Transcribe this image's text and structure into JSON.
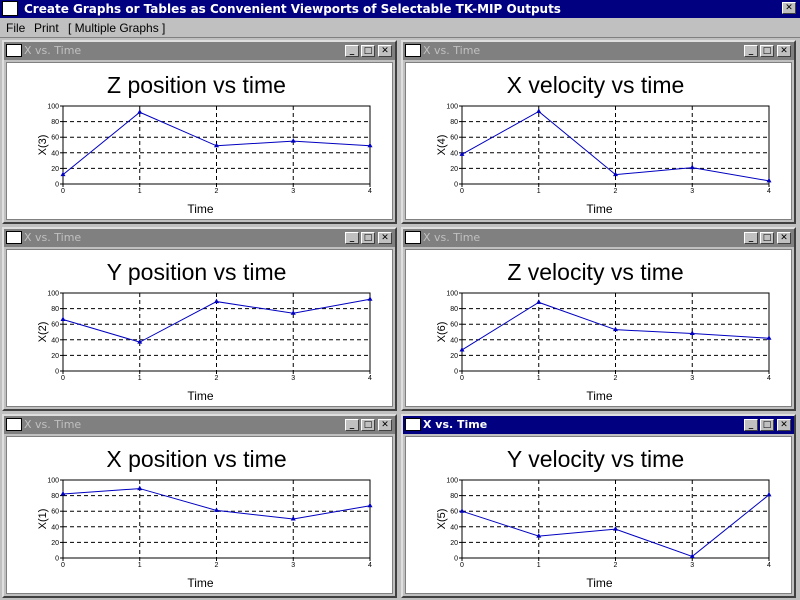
{
  "window": {
    "title": "Create Graphs or Tables as Convenient Viewports of Selectable TK-MIP Outputs",
    "close_symbol": "✕"
  },
  "menu": {
    "items": [
      "File",
      "Print",
      "[ Multiple Graphs ]"
    ]
  },
  "child_windows": [
    {
      "title": "X vs. Time",
      "active": false
    },
    {
      "title": "X vs. Time",
      "active": false
    },
    {
      "title": "X vs. Time",
      "active": false
    },
    {
      "title": "X vs. Time",
      "active": false
    },
    {
      "title": "X vs. Time",
      "active": false
    },
    {
      "title": "X vs. Time",
      "active": true
    }
  ],
  "chart_data": [
    {
      "type": "line",
      "title": "Z position vs time",
      "xlabel": "Time",
      "ylabel": "X(3)",
      "x": [
        0,
        1,
        2,
        3,
        4
      ],
      "y": [
        12,
        92,
        49,
        55,
        49
      ],
      "ylim": [
        0,
        100
      ],
      "xticks": [
        "0",
        "1",
        "2",
        "3",
        "4"
      ],
      "yticks": [
        "0",
        "20",
        "40",
        "60",
        "80",
        "100"
      ],
      "grid": true,
      "color": "#0000c0"
    },
    {
      "type": "line",
      "title": "X velocity vs time",
      "xlabel": "Time",
      "ylabel": "X(4)",
      "x": [
        0,
        1,
        2,
        3,
        4
      ],
      "y": [
        38,
        93,
        12,
        21,
        4
      ],
      "ylim": [
        0,
        100
      ],
      "xticks": [
        "0",
        "1",
        "2",
        "3",
        "4"
      ],
      "yticks": [
        "0",
        "20",
        "40",
        "60",
        "80",
        "100"
      ],
      "grid": true,
      "color": "#0000c0"
    },
    {
      "type": "line",
      "title": "Y position vs time",
      "xlabel": "Time",
      "ylabel": "X(2)",
      "x": [
        0,
        1,
        2,
        3,
        4
      ],
      "y": [
        66,
        37,
        89,
        74,
        92
      ],
      "ylim": [
        0,
        100
      ],
      "xticks": [
        "0",
        "1",
        "2",
        "3",
        "4"
      ],
      "yticks": [
        "0",
        "20",
        "40",
        "60",
        "80",
        "100"
      ],
      "grid": true,
      "color": "#0000c0"
    },
    {
      "type": "line",
      "title": "Z velocity vs time",
      "xlabel": "Time",
      "ylabel": "X(6)",
      "x": [
        0,
        1,
        2,
        3,
        4
      ],
      "y": [
        27,
        88,
        53,
        48,
        42
      ],
      "ylim": [
        0,
        100
      ],
      "xticks": [
        "0",
        "1",
        "2",
        "3",
        "4"
      ],
      "yticks": [
        "0",
        "20",
        "40",
        "60",
        "80",
        "100"
      ],
      "grid": true,
      "color": "#0000c0"
    },
    {
      "type": "line",
      "title": "X position vs time",
      "xlabel": "Time",
      "ylabel": "X(1)",
      "x": [
        0,
        1,
        2,
        3,
        4
      ],
      "y": [
        82,
        89,
        61,
        50,
        67
      ],
      "ylim": [
        0,
        100
      ],
      "xticks": [
        "0",
        "1",
        "2",
        "3",
        "4"
      ],
      "yticks": [
        "0",
        "20",
        "40",
        "60",
        "80",
        "100"
      ],
      "grid": true,
      "color": "#0000c0"
    },
    {
      "type": "line",
      "title": "Y velocity vs time",
      "xlabel": "Time",
      "ylabel": "X(5)",
      "x": [
        0,
        1,
        2,
        3,
        4
      ],
      "y": [
        60,
        28,
        37,
        2,
        81
      ],
      "ylim": [
        0,
        100
      ],
      "xticks": [
        "0",
        "1",
        "2",
        "3",
        "4"
      ],
      "yticks": [
        "0",
        "20",
        "40",
        "60",
        "80",
        "100"
      ],
      "grid": true,
      "color": "#0000c0"
    }
  ]
}
